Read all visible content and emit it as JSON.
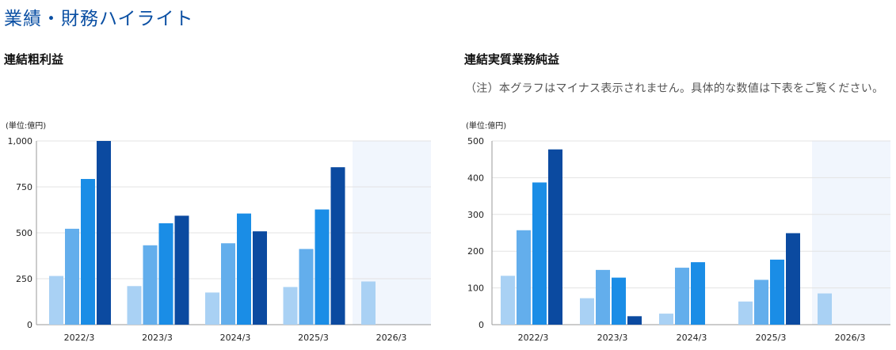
{
  "page_title": "業績・財務ハイライト",
  "colors": [
    "#a9d1f4",
    "#63aeec",
    "#1a8de6",
    "#0b4aa0"
  ],
  "forecast_bg": "#f1f6fd",
  "left": {
    "title": "連結粗利益",
    "unit": "(単位:億円)"
  },
  "right": {
    "title": "連結実質業務純益",
    "note": "（注）本グラフはマイナス表示されません。具体的な数値は下表をご覧ください。",
    "unit": "(単位:億円)"
  },
  "chart_data": [
    {
      "type": "bar",
      "title": "連結粗利益",
      "unit": "(単位:億円)",
      "categories": [
        "2022/3",
        "2023/3",
        "2024/3",
        "2025/3",
        "2026/3"
      ],
      "ylim": [
        0,
        1000
      ],
      "yticks": [
        0,
        250,
        500,
        750,
        1000
      ],
      "ytick_labels": [
        "0",
        "250",
        "500",
        "750",
        "1,000"
      ],
      "grid": true,
      "shaded_category": "2026/3",
      "series": [
        {
          "values": [
            265,
            210,
            175,
            205,
            235
          ]
        },
        {
          "values": [
            522,
            432,
            443,
            412,
            null
          ]
        },
        {
          "values": [
            793,
            552,
            605,
            627,
            null
          ]
        },
        {
          "values": [
            1000,
            593,
            508,
            857,
            null
          ]
        }
      ]
    },
    {
      "type": "bar",
      "title": "連結実質業務純益",
      "unit": "(単位:億円)",
      "categories": [
        "2022/3",
        "2023/3",
        "2024/3",
        "2025/3",
        "2026/3"
      ],
      "ylim": [
        0,
        500
      ],
      "yticks": [
        0,
        100,
        200,
        300,
        400,
        500
      ],
      "ytick_labels": [
        "0",
        "100",
        "200",
        "300",
        "400",
        "500"
      ],
      "grid": true,
      "shaded_category": "2026/3",
      "series": [
        {
          "values": [
            133,
            72,
            30,
            63,
            85
          ]
        },
        {
          "values": [
            257,
            149,
            155,
            122,
            null
          ]
        },
        {
          "values": [
            387,
            128,
            170,
            177,
            null
          ]
        },
        {
          "values": [
            477,
            23,
            0,
            249,
            null
          ]
        }
      ]
    }
  ]
}
